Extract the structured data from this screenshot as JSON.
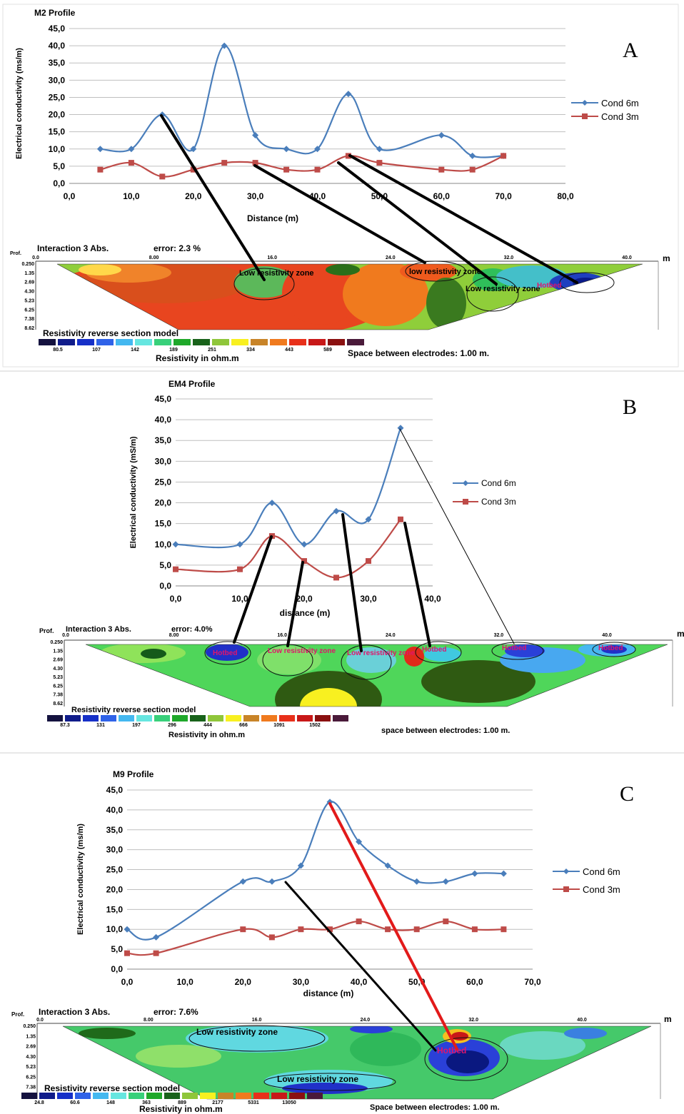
{
  "colors": {
    "cond6": "#4a7ebb",
    "cond3": "#be4b48",
    "grid": "#bfbfbf",
    "axis": "#888888"
  },
  "panels": [
    {
      "id": "A",
      "letter": "A",
      "title": "M2  Profile",
      "ylabel": "Electrical conductivity (ms/m)",
      "xlabel": "Distance (m)",
      "xticks": [
        "0,0",
        "10,0",
        "20,0",
        "30,0",
        "40,0",
        "50,0",
        "60,0",
        "70,0",
        "80,0"
      ],
      "yticks": [
        "0,0",
        "5,0",
        "10,0",
        "15,0",
        "20,0",
        "25,0",
        "30,0",
        "35,0",
        "40,0",
        "45,0"
      ],
      "legend": [
        "Cond 6m",
        "Cond 3m"
      ],
      "ert": {
        "header": "Interaction 3 Abs.",
        "error": "error: 2.3 %",
        "prof": "Prof.",
        "dist_ticks": [
          "0.0",
          "8.00",
          "16.0",
          "24.0",
          "32.0",
          "40.0"
        ],
        "depth_ticks": [
          "0.250",
          "1.35",
          "2.69",
          "4.30",
          "5.23",
          "6.25",
          "7.38",
          "8.62"
        ],
        "unit": "m",
        "model": "Resistivity reverse section model",
        "scale_values": [
          "80.5",
          "107",
          "142",
          "189",
          "251",
          "334",
          "443",
          "589"
        ],
        "scale_label": "Resistivity in ohm.m",
        "spacing": "Space between electrodes: 1.00 m.",
        "labels": [
          "Low resistivity zone",
          "low resistivity zone",
          "Low resistivity zone",
          "Hotbed"
        ]
      }
    },
    {
      "id": "B",
      "letter": "B",
      "title": "EM4 Profile",
      "ylabel": "Electrical conductivity (mS/m)",
      "xlabel": "distance  (m)",
      "xticks": [
        "0,0",
        "10,0",
        "20,0",
        "30,0",
        "40,0"
      ],
      "yticks": [
        "0,0",
        "5,0",
        "10,0",
        "15,0",
        "20,0",
        "25,0",
        "30,0",
        "35,0",
        "40,0",
        "45,0"
      ],
      "legend": [
        "Cond 6m",
        "Cond 3m"
      ],
      "ert": {
        "header": "Interaction 3 Abs.",
        "error": "error: 4.0%",
        "prof": "Prof.",
        "dist_ticks": [
          "0.0",
          "8.00",
          "16.0",
          "24.0",
          "32.0",
          "40.0"
        ],
        "depth_ticks": [
          "0.250",
          "1.35",
          "2.69",
          "4.30",
          "5.23",
          "6.25",
          "7.38",
          "8.62"
        ],
        "unit": "m",
        "model": "Resistivity reverse section model",
        "scale_values": [
          "87.3",
          "131",
          "197",
          "296",
          "444",
          "666",
          "1091",
          "1502"
        ],
        "scale_label": "Resistivity in ohm.m",
        "spacing": "space between electrodes: 1.00 m.",
        "labels": [
          "Hotbed",
          "Low resistivity zone",
          "Low resistivity zone",
          "Hotbed",
          "Hotbed",
          "Hotbed"
        ]
      }
    },
    {
      "id": "C",
      "letter": "C",
      "title": "M9 Profile",
      "ylabel": "Electrical conductivity (ms/m)",
      "xlabel": "distance   (m)",
      "xticks": [
        "0,0",
        "10,0",
        "20,0",
        "30,0",
        "40,0",
        "50,0",
        "60,0",
        "70,0"
      ],
      "yticks": [
        "0,0",
        "5,0",
        "10,0",
        "15,0",
        "20,0",
        "25,0",
        "30,0",
        "35,0",
        "40,0",
        "45,0"
      ],
      "legend": [
        "Cond 6m",
        "Cond 3m"
      ],
      "ert": {
        "header": "Interaction 3 Abs.",
        "error": "error: 7.6%",
        "prof": "Prof.",
        "dist_ticks": [
          "0.0",
          "8.00",
          "16.0",
          "24.0",
          "32.0",
          "40.0"
        ],
        "depth_ticks": [
          "0.250",
          "1.35",
          "2.69",
          "4.30",
          "5.23",
          "6.25",
          "7.38",
          "8.62"
        ],
        "unit": "m",
        "model": "Resistivity reverse section model",
        "scale_values": [
          "24.8",
          "60.6",
          "148",
          "363",
          "889",
          "2177",
          "5331",
          "13050"
        ],
        "scale_label": "Resistivity in ohm.m",
        "spacing": "Space between electrodes: 1.00 m.",
        "labels": [
          "Low resistivity zone",
          "Low resistivity zone",
          "Hotbed"
        ]
      }
    }
  ],
  "chart_data": [
    {
      "type": "line",
      "title": "M2  Profile",
      "xlabel": "Distance (m)",
      "ylabel": "Electrical conductivity (ms/m)",
      "xlim": [
        0,
        80
      ],
      "ylim": [
        0,
        45
      ],
      "series": [
        {
          "name": "Cond 6m",
          "x": [
            5,
            10,
            15,
            20,
            25,
            30,
            35,
            40,
            45,
            50,
            60,
            65,
            70
          ],
          "y": [
            10,
            10,
            20,
            10,
            40,
            14,
            10,
            10,
            26,
            10,
            14,
            8,
            8
          ]
        },
        {
          "name": "Cond 3m",
          "x": [
            5,
            10,
            15,
            20,
            25,
            30,
            35,
            40,
            45,
            50,
            60,
            65,
            70
          ],
          "y": [
            4,
            6,
            2,
            4,
            6,
            6,
            4,
            4,
            8,
            6,
            4,
            4,
            8
          ]
        }
      ]
    },
    {
      "type": "line",
      "title": "EM4 Profile",
      "xlabel": "distance  (m)",
      "ylabel": "Electrical conductivity (mS/m)",
      "xlim": [
        0,
        40
      ],
      "ylim": [
        0,
        45
      ],
      "series": [
        {
          "name": "Cond 6m",
          "x": [
            0,
            10,
            15,
            20,
            25,
            30,
            35
          ],
          "y": [
            10,
            10,
            20,
            10,
            18,
            16,
            38
          ]
        },
        {
          "name": "Cond 3m",
          "x": [
            0,
            10,
            15,
            20,
            25,
            30,
            35
          ],
          "y": [
            4,
            4,
            12,
            6,
            2,
            6,
            16
          ]
        }
      ]
    },
    {
      "type": "line",
      "title": "M9 Profile",
      "xlabel": "distance   (m)",
      "ylabel": "Electrical conductivity (ms/m)",
      "xlim": [
        0,
        70
      ],
      "ylim": [
        0,
        45
      ],
      "series": [
        {
          "name": "Cond 6m",
          "x": [
            0,
            5,
            20,
            25,
            30,
            35,
            40,
            45,
            50,
            55,
            60,
            65
          ],
          "y": [
            10,
            8,
            22,
            22,
            26,
            42,
            32,
            26,
            22,
            22,
            24,
            24
          ]
        },
        {
          "name": "Cond 3m",
          "x": [
            0,
            5,
            20,
            25,
            30,
            35,
            40,
            45,
            50,
            55,
            60,
            65
          ],
          "y": [
            4,
            4,
            10,
            8,
            10,
            10,
            12,
            10,
            10,
            12,
            10,
            10
          ]
        }
      ]
    }
  ]
}
